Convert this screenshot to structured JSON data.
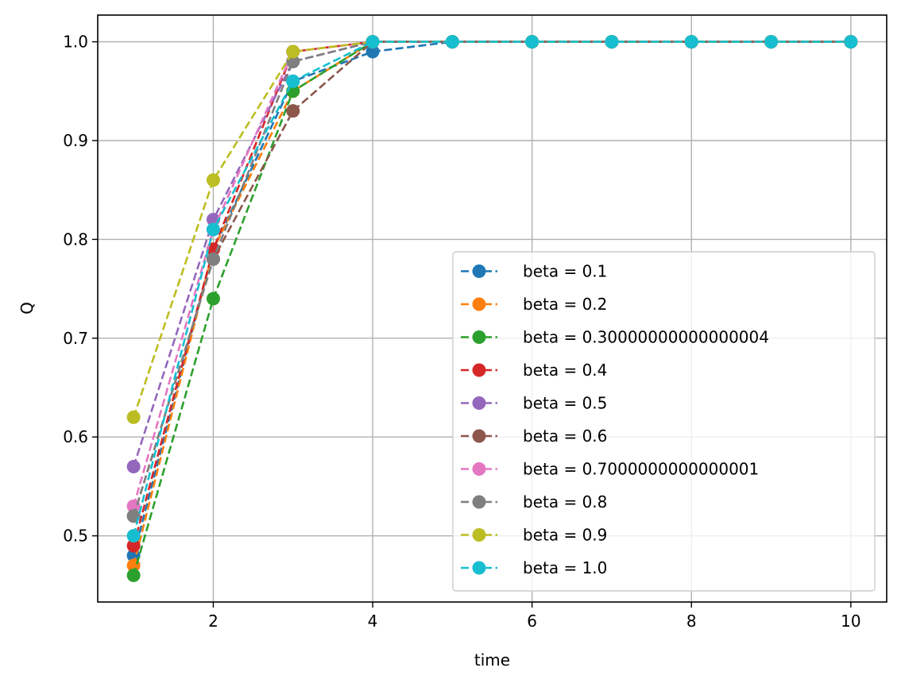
{
  "chart_data": {
    "type": "line",
    "title": "",
    "xlabel": "time",
    "ylabel": "Q",
    "x": [
      1,
      2,
      3,
      4,
      5,
      6,
      7,
      8,
      9,
      10
    ],
    "xlim": [
      0.55,
      10.45
    ],
    "ylim": [
      0.433,
      1.027
    ],
    "xticks": [
      2,
      4,
      6,
      8,
      10
    ],
    "xtick_labels": [
      "2",
      "4",
      "6",
      "8",
      "10"
    ],
    "yticks": [
      0.5,
      0.6,
      0.7,
      0.8,
      0.9,
      1.0
    ],
    "ytick_labels": [
      "0.5",
      "0.6",
      "0.7",
      "0.8",
      "0.9",
      "1.0"
    ],
    "grid": true,
    "legend_position": "lower-right",
    "line_style": "dashed",
    "marker": "circle",
    "series": [
      {
        "name": "beta = 0.1",
        "color": "#1f77b4",
        "values": [
          0.48,
          0.79,
          0.96,
          0.99,
          1.0,
          1.0,
          1.0,
          1.0,
          1.0,
          1.0
        ]
      },
      {
        "name": "beta = 0.2",
        "color": "#ff7f0e",
        "values": [
          0.47,
          0.79,
          0.95,
          1.0,
          1.0,
          1.0,
          1.0,
          1.0,
          1.0,
          1.0
        ]
      },
      {
        "name": "beta = 0.30000000000000004",
        "color": "#2ca02c",
        "values": [
          0.46,
          0.74,
          0.95,
          1.0,
          1.0,
          1.0,
          1.0,
          1.0,
          1.0,
          1.0
        ]
      },
      {
        "name": "beta = 0.4",
        "color": "#d62728",
        "values": [
          0.49,
          0.79,
          0.99,
          1.0,
          1.0,
          1.0,
          1.0,
          1.0,
          1.0,
          1.0
        ]
      },
      {
        "name": "beta = 0.5",
        "color": "#9467bd",
        "values": [
          0.57,
          0.82,
          0.98,
          1.0,
          1.0,
          1.0,
          1.0,
          1.0,
          1.0,
          1.0
        ]
      },
      {
        "name": "beta = 0.6",
        "color": "#8c564b",
        "values": [
          0.52,
          0.78,
          0.93,
          1.0,
          1.0,
          1.0,
          1.0,
          1.0,
          1.0,
          1.0
        ]
      },
      {
        "name": "beta = 0.7000000000000001",
        "color": "#e377c2",
        "values": [
          0.53,
          0.81,
          0.99,
          1.0,
          1.0,
          1.0,
          1.0,
          1.0,
          1.0,
          1.0
        ]
      },
      {
        "name": "beta = 0.8",
        "color": "#7f7f7f",
        "values": [
          0.52,
          0.78,
          0.98,
          1.0,
          1.0,
          1.0,
          1.0,
          1.0,
          1.0,
          1.0
        ]
      },
      {
        "name": "beta = 0.9",
        "color": "#bcbd22",
        "values": [
          0.62,
          0.86,
          0.99,
          1.0,
          1.0,
          1.0,
          1.0,
          1.0,
          1.0,
          1.0
        ]
      },
      {
        "name": "beta = 1.0",
        "color": "#17becf",
        "values": [
          0.5,
          0.81,
          0.96,
          1.0,
          1.0,
          1.0,
          1.0,
          1.0,
          1.0,
          1.0
        ]
      }
    ]
  }
}
